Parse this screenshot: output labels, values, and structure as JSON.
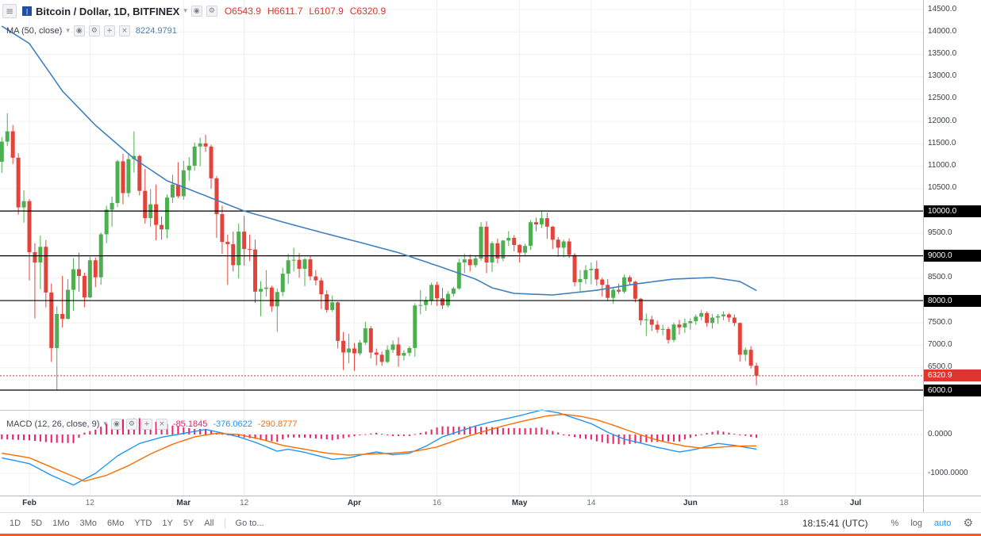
{
  "icons": {
    "menu": "≡",
    "caret": "▾",
    "eye": "◉",
    "gear": "⚙",
    "plus": "+",
    "close": "×",
    "logo": "|"
  },
  "header": {
    "symbol_title": "Bitcoin / Dollar, 1D, BITFINEX",
    "ohlc": {
      "open": "O6543.9",
      "high": "H6611.7",
      "low": "L6107.9",
      "close": "C6320.9"
    },
    "ohlc_color": "#e0342f"
  },
  "indicators": {
    "ma": {
      "label": "MA (50, close)",
      "value": "8224.9791"
    },
    "macd": {
      "label": "MACD (12, 26, close, 9)",
      "hist_value": "-85.1845",
      "macd_value": "-376.0622",
      "signal_value": "-290.8777"
    }
  },
  "toolbar": {
    "ranges": [
      "1D",
      "5D",
      "1Mo",
      "3Mo",
      "6Mo",
      "YTD",
      "1Y",
      "5Y",
      "All"
    ],
    "goto": "Go to...",
    "clock": "18:15:41 (UTC)",
    "percent": "%",
    "log_label": "log",
    "auto_label": "auto",
    "auto_color": "#2196f3"
  },
  "chart_data": {
    "type": "candlestick",
    "title": "Bitcoin / Dollar, 1D, BITFINEX",
    "interval": "1D",
    "price_labels": [
      "14500.0",
      "14000.0",
      "13500.0",
      "13000.0",
      "12500.0",
      "12000.0",
      "11500.0",
      "11000.0",
      "10500.0",
      "10000.0",
      "9500.0",
      "9000.0",
      "8500.0",
      "8000.0",
      "7500.0",
      "7000.0",
      "6500.0",
      "6000.0"
    ],
    "levels": [
      10000,
      9000,
      8000,
      6000
    ],
    "level_tag_labels": [
      "10000.0",
      "9000.0",
      "8000.0",
      "6000.0"
    ],
    "last_price": 6320.9,
    "last_price_label": "6320.9",
    "time_labels": [
      {
        "text": "Feb",
        "i": 5
      },
      {
        "text": "12",
        "i": 16
      },
      {
        "text": "Mar",
        "i": 33
      },
      {
        "text": "12",
        "i": 44
      },
      {
        "text": "Apr",
        "i": 64
      },
      {
        "text": "16",
        "i": 79
      },
      {
        "text": "May",
        "i": 94
      },
      {
        "text": "14",
        "i": 107
      },
      {
        "text": "Jun",
        "i": 125
      },
      {
        "text": "18",
        "i": 142
      },
      {
        "text": "Jul",
        "i": 155
      }
    ],
    "candles": [
      [
        11100,
        11650,
        10850,
        11550
      ],
      [
        11550,
        12180,
        11450,
        11780
      ],
      [
        11780,
        11920,
        11050,
        11190
      ],
      [
        11190,
        11290,
        9920,
        10080
      ],
      [
        10080,
        10460,
        9740,
        10220
      ],
      [
        10220,
        10270,
        8450,
        9080
      ],
      [
        9080,
        9280,
        7600,
        8850
      ],
      [
        8850,
        9450,
        8250,
        9200
      ],
      [
        9200,
        9350,
        7850,
        8180
      ],
      [
        8180,
        8380,
        6630,
        6940
      ],
      [
        6940,
        7870,
        6000,
        7700
      ],
      [
        7700,
        8550,
        7400,
        7590
      ],
      [
        7590,
        8480,
        7580,
        8240
      ],
      [
        8240,
        8950,
        7770,
        8700
      ],
      [
        8700,
        9070,
        8200,
        8550
      ],
      [
        8550,
        8620,
        7850,
        8070
      ],
      [
        8070,
        8980,
        8050,
        8900
      ],
      [
        8900,
        8960,
        8300,
        8520
      ],
      [
        8520,
        9520,
        8350,
        9480
      ],
      [
        9480,
        10120,
        9280,
        10030
      ],
      [
        10030,
        10320,
        9650,
        10180
      ],
      [
        10180,
        11140,
        10090,
        11110
      ],
      [
        11110,
        11280,
        10150,
        10400
      ],
      [
        10400,
        11270,
        10310,
        11160
      ],
      [
        11160,
        11780,
        10860,
        11230
      ],
      [
        11230,
        11260,
        10350,
        10450
      ],
      [
        10450,
        10940,
        9720,
        9840
      ],
      [
        9840,
        10490,
        9650,
        10150
      ],
      [
        10150,
        10590,
        9350,
        9690
      ],
      [
        9690,
        9880,
        9360,
        9590
      ],
      [
        9590,
        10370,
        9390,
        10300
      ],
      [
        10300,
        10810,
        10180,
        10590
      ],
      [
        10590,
        11090,
        10290,
        10330
      ],
      [
        10330,
        11120,
        10250,
        10910
      ],
      [
        10910,
        11200,
        10680,
        11010
      ],
      [
        11010,
        11530,
        10900,
        11440
      ],
      [
        11440,
        11640,
        11000,
        11510
      ],
      [
        11510,
        11700,
        11320,
        11440
      ],
      [
        11440,
        11480,
        10500,
        10730
      ],
      [
        10730,
        10780,
        9400,
        9930
      ],
      [
        9930,
        10120,
        9040,
        9310
      ],
      [
        9310,
        9470,
        8350,
        9260
      ],
      [
        9260,
        9540,
        8650,
        8790
      ],
      [
        8790,
        9720,
        8490,
        9540
      ],
      [
        9540,
        9890,
        8780,
        9150
      ],
      [
        9150,
        9470,
        8880,
        9140
      ],
      [
        9140,
        9360,
        7950,
        8200
      ],
      [
        8200,
        8430,
        7650,
        8260
      ],
      [
        8260,
        8680,
        8090,
        8290
      ],
      [
        8290,
        8330,
        7750,
        7870
      ],
      [
        7870,
        8270,
        7300,
        8190
      ],
      [
        8190,
        8730,
        8100,
        8600
      ],
      [
        8600,
        9050,
        8370,
        8900
      ],
      [
        8900,
        9180,
        8650,
        8910
      ],
      [
        8910,
        9060,
        8510,
        8710
      ],
      [
        8710,
        8950,
        8320,
        8920
      ],
      [
        8920,
        9010,
        8450,
        8540
      ],
      [
        8540,
        8680,
        8340,
        8450
      ],
      [
        8450,
        8510,
        7810,
        8140
      ],
      [
        8140,
        8230,
        7730,
        7790
      ],
      [
        7790,
        8110,
        7750,
        7960
      ],
      [
        7960,
        7980,
        6930,
        7100
      ],
      [
        7100,
        7300,
        6450,
        6840
      ],
      [
        6840,
        7260,
        6600,
        6930
      ],
      [
        6930,
        7050,
        6430,
        6820
      ],
      [
        6820,
        7120,
        6770,
        7060
      ],
      [
        7060,
        7530,
        7010,
        7380
      ],
      [
        7380,
        7430,
        6710,
        6840
      ],
      [
        6840,
        6930,
        6550,
        6790
      ],
      [
        6790,
        6860,
        6540,
        6630
      ],
      [
        6630,
        7000,
        6600,
        6900
      ],
      [
        6900,
        7110,
        6830,
        7020
      ],
      [
        7020,
        7180,
        6520,
        6770
      ],
      [
        6770,
        6890,
        6660,
        6830
      ],
      [
        6830,
        6980,
        6760,
        6940
      ],
      [
        6940,
        7940,
        6740,
        7890
      ],
      [
        7890,
        8230,
        7690,
        7900
      ],
      [
        7900,
        8090,
        7770,
        8000
      ],
      [
        8000,
        8400,
        7900,
        8350
      ],
      [
        8350,
        8420,
        7880,
        8050
      ],
      [
        8050,
        8280,
        7810,
        7890
      ],
      [
        7890,
        8210,
        7850,
        8150
      ],
      [
        8150,
        8310,
        8090,
        8270
      ],
      [
        8270,
        8930,
        8240,
        8850
      ],
      [
        8850,
        9050,
        8610,
        8920
      ],
      [
        8920,
        9030,
        8650,
        8790
      ],
      [
        8790,
        9000,
        8740,
        8940
      ],
      [
        8940,
        9750,
        8890,
        9650
      ],
      [
        9650,
        9770,
        8610,
        8850
      ],
      [
        8850,
        9320,
        8640,
        9280
      ],
      [
        9280,
        9380,
        8830,
        8940
      ],
      [
        8940,
        9350,
        8880,
        9340
      ],
      [
        9340,
        9550,
        9220,
        9400
      ],
      [
        9400,
        9460,
        9100,
        9240
      ],
      [
        9240,
        9260,
        8850,
        9070
      ],
      [
        9070,
        9270,
        8980,
        9220
      ],
      [
        9220,
        9800,
        9130,
        9750
      ],
      [
        9750,
        9850,
        9550,
        9700
      ],
      [
        9700,
        9990,
        9620,
        9840
      ],
      [
        9840,
        9960,
        9380,
        9650
      ],
      [
        9650,
        9670,
        9150,
        9360
      ],
      [
        9360,
        9420,
        8980,
        9180
      ],
      [
        9180,
        9360,
        8960,
        9320
      ],
      [
        9320,
        9390,
        8950,
        9020
      ],
      [
        9020,
        9060,
        8320,
        8410
      ],
      [
        8410,
        8680,
        8210,
        8480
      ],
      [
        8480,
        8790,
        8370,
        8680
      ],
      [
        8680,
        8850,
        8360,
        8710
      ],
      [
        8710,
        8890,
        8330,
        8470
      ],
      [
        8470,
        8510,
        8090,
        8350
      ],
      [
        8350,
        8480,
        7990,
        8060
      ],
      [
        8060,
        8280,
        7930,
        8240
      ],
      [
        8240,
        8380,
        8150,
        8200
      ],
      [
        8200,
        8580,
        8160,
        8520
      ],
      [
        8520,
        8560,
        8340,
        8420
      ],
      [
        8420,
        8440,
        7960,
        8040
      ],
      [
        8040,
        8060,
        7450,
        7560
      ],
      [
        7560,
        7710,
        7210,
        7580
      ],
      [
        7580,
        7660,
        7320,
        7460
      ],
      [
        7460,
        7550,
        7280,
        7350
      ],
      [
        7350,
        7460,
        7220,
        7365
      ],
      [
        7365,
        7410,
        7040,
        7120
      ],
      [
        7120,
        7510,
        7070,
        7465
      ],
      [
        7465,
        7570,
        7240,
        7400
      ],
      [
        7400,
        7600,
        7280,
        7495
      ],
      [
        7495,
        7600,
        7350,
        7540
      ],
      [
        7540,
        7690,
        7460,
        7640
      ],
      [
        7640,
        7790,
        7560,
        7720
      ],
      [
        7720,
        7760,
        7410,
        7500
      ],
      [
        7500,
        7700,
        7370,
        7620
      ],
      [
        7620,
        7700,
        7480,
        7650
      ],
      [
        7650,
        7760,
        7560,
        7690
      ],
      [
        7690,
        7720,
        7520,
        7620
      ],
      [
        7620,
        7690,
        7430,
        7500
      ],
      [
        7500,
        7510,
        6640,
        6790
      ],
      [
        6790,
        6950,
        6650,
        6900
      ],
      [
        6900,
        6980,
        6480,
        6545
      ],
      [
        6543.9,
        6611.7,
        6107.9,
        6320.9
      ]
    ],
    "ma50": {
      "period": 50,
      "last_value": 8224.9791,
      "keypoints": [
        [
          0,
          14130
        ],
        [
          5,
          13740
        ],
        [
          11,
          12680
        ],
        [
          17,
          11915
        ],
        [
          24,
          11170
        ],
        [
          30,
          10675
        ],
        [
          37,
          10340
        ],
        [
          44,
          10000
        ],
        [
          52,
          9720
        ],
        [
          59,
          9490
        ],
        [
          65,
          9300
        ],
        [
          72,
          9070
        ],
        [
          79,
          8780
        ],
        [
          86,
          8480
        ],
        [
          89,
          8285
        ],
        [
          93,
          8160
        ],
        [
          100,
          8125
        ],
        [
          108,
          8230
        ],
        [
          115,
          8370
        ],
        [
          122,
          8480
        ],
        [
          129,
          8515
        ],
        [
          134,
          8425
        ],
        [
          137,
          8224.98
        ]
      ]
    },
    "macd": {
      "params": "12, 26, close, 9",
      "labels": [
        {
          "text": "0.0000",
          "v": 0
        },
        {
          "text": "-1000.0000",
          "v": -1000
        }
      ],
      "last": {
        "hist": -85.1845,
        "macd": -376.0622,
        "signal": -290.8777
      },
      "macd_keypoints": [
        [
          0,
          -600
        ],
        [
          5,
          -750
        ],
        [
          9,
          -1050
        ],
        [
          13,
          -1300
        ],
        [
          17,
          -1000
        ],
        [
          21,
          -550
        ],
        [
          25,
          -230
        ],
        [
          29,
          -70
        ],
        [
          33,
          30
        ],
        [
          37,
          130
        ],
        [
          40,
          40
        ],
        [
          43,
          -60
        ],
        [
          46,
          -200
        ],
        [
          50,
          -430
        ],
        [
          52,
          -380
        ],
        [
          55,
          -460
        ],
        [
          60,
          -640
        ],
        [
          63,
          -600
        ],
        [
          66,
          -500
        ],
        [
          68,
          -450
        ],
        [
          71,
          -520
        ],
        [
          74,
          -480
        ],
        [
          77,
          -300
        ],
        [
          80,
          -60
        ],
        [
          83,
          80
        ],
        [
          86,
          220
        ],
        [
          89,
          330
        ],
        [
          92,
          420
        ],
        [
          95,
          520
        ],
        [
          98,
          630
        ],
        [
          101,
          560
        ],
        [
          104,
          420
        ],
        [
          107,
          280
        ],
        [
          110,
          60
        ],
        [
          113,
          -120
        ],
        [
          116,
          -220
        ],
        [
          119,
          -330
        ],
        [
          123,
          -450
        ],
        [
          126,
          -380
        ],
        [
          130,
          -230
        ],
        [
          133,
          -280
        ],
        [
          135,
          -330
        ],
        [
          137,
          -376.0622
        ]
      ],
      "signal_keypoints": [
        [
          0,
          -480
        ],
        [
          5,
          -600
        ],
        [
          10,
          -900
        ],
        [
          15,
          -1200
        ],
        [
          19,
          -1050
        ],
        [
          23,
          -800
        ],
        [
          27,
          -500
        ],
        [
          31,
          -250
        ],
        [
          35,
          -60
        ],
        [
          39,
          30
        ],
        [
          43,
          0
        ],
        [
          47,
          -120
        ],
        [
          51,
          -280
        ],
        [
          55,
          -380
        ],
        [
          59,
          -480
        ],
        [
          63,
          -530
        ],
        [
          67,
          -500
        ],
        [
          71,
          -480
        ],
        [
          75,
          -430
        ],
        [
          79,
          -320
        ],
        [
          83,
          -120
        ],
        [
          87,
          60
        ],
        [
          91,
          220
        ],
        [
          95,
          360
        ],
        [
          99,
          480
        ],
        [
          102,
          520
        ],
        [
          105,
          470
        ],
        [
          108,
          380
        ],
        [
          111,
          240
        ],
        [
          114,
          90
        ],
        [
          117,
          -60
        ],
        [
          120,
          -180
        ],
        [
          124,
          -300
        ],
        [
          127,
          -350
        ],
        [
          130,
          -330
        ],
        [
          133,
          -300
        ],
        [
          137,
          -290.8777
        ]
      ]
    },
    "colors": {
      "up": "#4caf50",
      "down": "#e2443b",
      "ma": "#4080bf",
      "macd": "#2196f3",
      "signal": "#ff6d00",
      "hist": "#e91e63",
      "level": "#000000",
      "last_price": "#e0342f"
    }
  }
}
